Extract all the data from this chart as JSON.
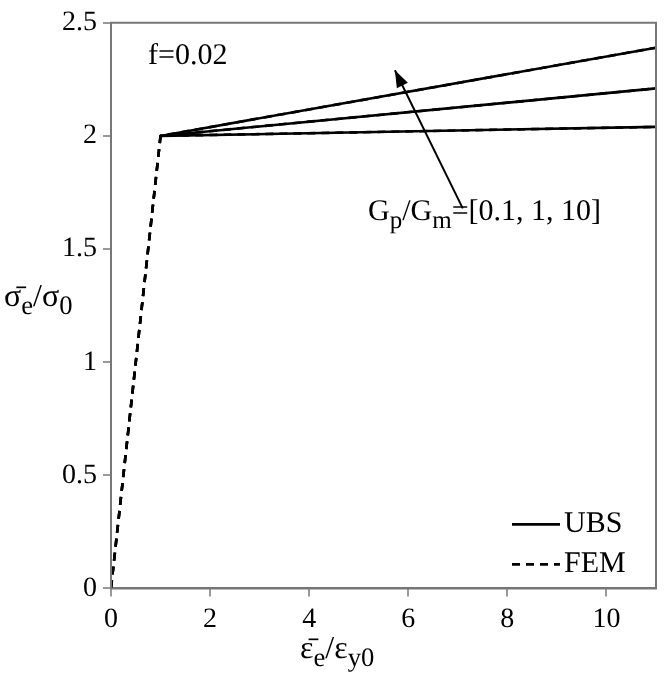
{
  "chart_data": {
    "type": "line",
    "xlabel": "ε̄$_{e}$/ε$_{y0}$",
    "ylabel": "σ̄$_{e}$/σ$_{0}$",
    "annotations": [
      "f=0.02",
      "G$_{p}$/G$_{m}$=[0.1, 1, 10]"
    ],
    "xlim": [
      0,
      11
    ],
    "xticks": [
      0,
      2,
      4,
      6,
      8,
      10
    ],
    "ylim": [
      0,
      2.5
    ],
    "yticks": [
      0,
      0.5,
      1,
      1.5,
      2,
      2.5
    ],
    "grid": false,
    "legend": "bottom right",
    "marker": "none",
    "series": [
      {
        "name": "UBS",
        "color": "#000000",
        "line_style": "solid",
        "x": [
          1,
          11
        ],
        "values": [
          2,
          2.39
        ]
      },
      {
        "color": "#000000",
        "line_style": "solid",
        "x": [
          1,
          11
        ],
        "values": [
          2,
          2.21
        ]
      },
      {
        "color": "#000000",
        "line_style": "solid",
        "x": [
          1,
          11
        ],
        "values": [
          2,
          2.04
        ]
      },
      {
        "name": "FEM",
        "color": "#000000",
        "line_style": "dashed",
        "x": [
          0,
          1,
          11
        ],
        "values": [
          0,
          2,
          2.39
        ]
      },
      {
        "color": "#000000",
        "line_style": "dashed",
        "x": [
          0,
          1,
          11
        ],
        "values": [
          0,
          2,
          2.21
        ]
      },
      {
        "color": "#000000",
        "line_style": "dashed",
        "x": [
          0,
          1,
          11
        ],
        "values": [
          0,
          2,
          2.04
        ]
      }
    ]
  }
}
